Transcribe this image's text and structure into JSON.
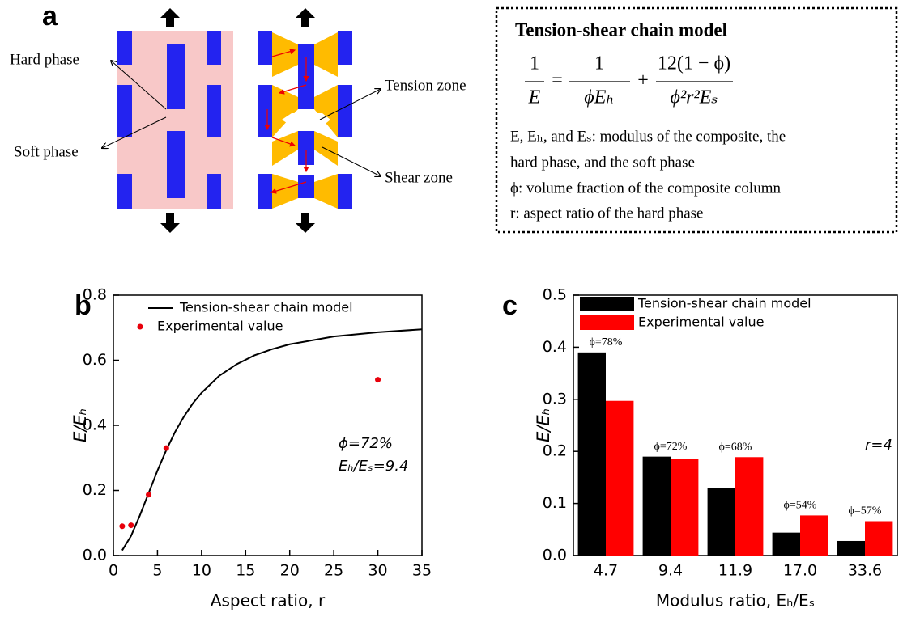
{
  "panel_labels": [
    "a",
    "b",
    "c"
  ],
  "diagram": {
    "hard_phase": "Hard phase",
    "soft_phase": "Soft phase",
    "tension_zone": "Tension zone",
    "shear_zone": "Shear zone",
    "model_box": {
      "title": "Tension-shear chain model",
      "formula": {
        "lhs_numerator": "1",
        "lhs_denominator": "E",
        "equals": "=",
        "rhs1_numerator": "1",
        "rhs1_denominator": "ϕEₕ",
        "plus": "+",
        "rhs2_numerator": "12(1 − ϕ)",
        "rhs2_denominator": "ϕ²r²Eₛ"
      },
      "lines": [
        "E, Eₕ, and Eₛ: modulus of the composite, the",
        "hard phase, and the soft phase",
        "ϕ: volume fraction of the composite column",
        "r: aspect ratio of the hard phase"
      ]
    }
  },
  "chart_data": [
    {
      "type": "line",
      "x_label": "Aspect ratio, r",
      "y_label": "E/Eₕ",
      "xlim": [
        0,
        35
      ],
      "xticks": [
        0,
        5,
        10,
        15,
        20,
        25,
        30,
        35
      ],
      "ylim": [
        0,
        0.8
      ],
      "yticks": [
        {
          "value": 0,
          "label": "0.0"
        },
        0.2,
        0.4,
        0.6,
        0.8
      ],
      "legend": "upper left",
      "annotations": [
        "ϕ=72%",
        "Eₕ/Eₛ=9.4"
      ],
      "series": [
        {
          "name": "Tension-shear chain model",
          "type": "line",
          "color": "#000000",
          "x": [
            1,
            2,
            3,
            4,
            5,
            6,
            7,
            8,
            9,
            10,
            12,
            14,
            16,
            18,
            20,
            25,
            30,
            35
          ],
          "values": [
            0.016,
            0.06,
            0.123,
            0.192,
            0.261,
            0.324,
            0.38,
            0.427,
            0.467,
            0.5,
            0.552,
            0.588,
            0.615,
            0.634,
            0.649,
            0.673,
            0.686,
            0.695
          ]
        },
        {
          "name": "Experimental value",
          "type": "scatter",
          "color": "#e8000b",
          "x": [
            1,
            2,
            4,
            6,
            30
          ],
          "values": [
            0.09,
            0.093,
            0.187,
            0.33,
            0.54
          ]
        }
      ]
    },
    {
      "type": "bar",
      "x_label": "Modulus ratio, Eₕ/Eₛ",
      "y_label": "E/Eₕ",
      "categories": [
        "4.7",
        "9.4",
        "11.9",
        "17.0",
        "33.6"
      ],
      "ylim": [
        0,
        0.5
      ],
      "yticks": [
        {
          "value": 0,
          "label": "0.0"
        },
        0.1,
        0.2,
        0.3,
        0.4,
        0.5
      ],
      "legend": "upper left",
      "group_labels": [
        "ϕ=78%",
        "ϕ=72%",
        "ϕ=68%",
        "ϕ=54%",
        "ϕ=57%"
      ],
      "annotations": [
        "r=4"
      ],
      "series": [
        {
          "name": "Tension-shear chain model",
          "color": "#000000",
          "values": [
            0.39,
            0.19,
            0.13,
            0.044,
            0.028
          ]
        },
        {
          "name": "Experimental value",
          "color": "#ff0000",
          "values": [
            0.297,
            0.185,
            0.189,
            0.077,
            0.066
          ]
        }
      ]
    }
  ]
}
